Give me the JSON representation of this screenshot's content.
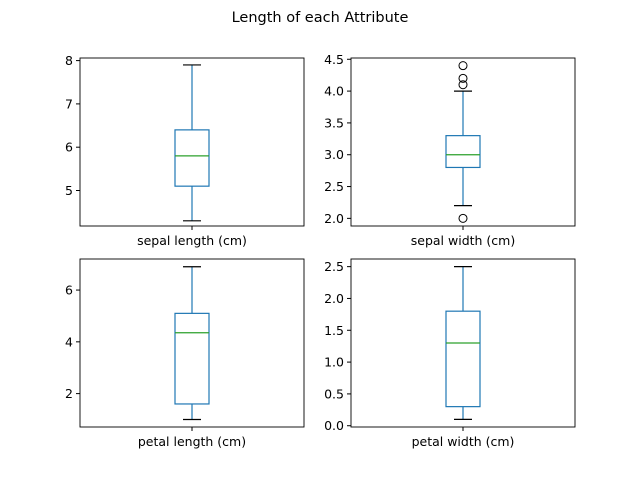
{
  "chart_data": {
    "type": "box",
    "title": "Length of each Attribute",
    "colors": {
      "box": "#1f77b4",
      "median": "#2ca02c",
      "whisker_cap": "#000000",
      "flier": "#000000",
      "axes": "#000000"
    },
    "subplots": [
      {
        "category": "sepal length (cm)",
        "ylim": [
          4.18,
          8.06
        ],
        "yticks": [
          5,
          6,
          7,
          8
        ],
        "ytick_labels": [
          "5",
          "6",
          "7",
          "8"
        ],
        "whisker_low": 4.3,
        "q1": 5.1,
        "median": 5.8,
        "q3": 6.4,
        "whisker_high": 7.9,
        "fliers": []
      },
      {
        "category": "sepal width (cm)",
        "ylim": [
          1.88,
          4.52
        ],
        "yticks": [
          2.0,
          2.5,
          3.0,
          3.5,
          4.0,
          4.5
        ],
        "ytick_labels": [
          "2.0",
          "2.5",
          "3.0",
          "3.5",
          "4.0",
          "4.5"
        ],
        "whisker_low": 2.2,
        "q1": 2.8,
        "median": 3.0,
        "q3": 3.3,
        "whisker_high": 4.0,
        "fliers": [
          4.4,
          4.1,
          4.2,
          2.0
        ]
      },
      {
        "category": "petal length (cm)",
        "ylim": [
          0.71,
          7.2
        ],
        "yticks": [
          2,
          4,
          6
        ],
        "ytick_labels": [
          "2",
          "4",
          "6"
        ],
        "whisker_low": 1.0,
        "q1": 1.6,
        "median": 4.35,
        "q3": 5.1,
        "whisker_high": 6.9,
        "fliers": []
      },
      {
        "category": "petal width (cm)",
        "ylim": [
          -0.02,
          2.62
        ],
        "yticks": [
          0.0,
          0.5,
          1.0,
          1.5,
          2.0,
          2.5
        ],
        "ytick_labels": [
          "0.0",
          "0.5",
          "1.0",
          "1.5",
          "2.0",
          "2.5"
        ],
        "whisker_low": 0.1,
        "q1": 0.3,
        "median": 1.3,
        "q3": 1.8,
        "whisker_high": 2.5,
        "fliers": []
      }
    ]
  }
}
